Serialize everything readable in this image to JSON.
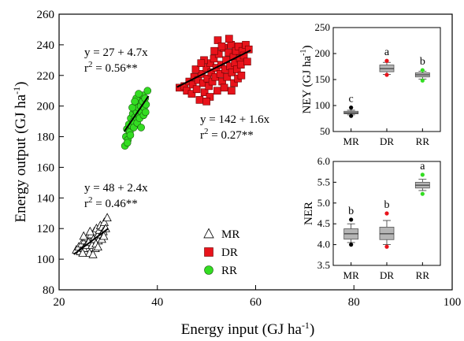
{
  "chart_data": [
    {
      "type": "scatter",
      "title": "",
      "xlabel": "Energy input (GJ ha",
      "xlabel_sup": "-1",
      "xlabel_end": ")",
      "ylabel": "Energy output (GJ ha",
      "ylabel_sup": "-1",
      "ylabel_end": ")",
      "xlim": [
        20,
        100
      ],
      "ylim": [
        80,
        260
      ],
      "xticks": [
        "20",
        "40",
        "60",
        "80",
        "100"
      ],
      "yticks": [
        "80",
        "100",
        "120",
        "140",
        "160",
        "180",
        "200",
        "220",
        "240",
        "260"
      ],
      "grid": false,
      "legend": "lower-center",
      "series": [
        {
          "name": "MR",
          "marker": "triangle",
          "color": "#ffffff",
          "stroke": "#000000",
          "points": [
            [
              23.5,
              106
            ],
            [
              24,
              108
            ],
            [
              24.3,
              105
            ],
            [
              24.6,
              110
            ],
            [
              25,
              107
            ],
            [
              25.2,
              112
            ],
            [
              25.5,
              109
            ],
            [
              25.8,
              114
            ],
            [
              26,
              111
            ],
            [
              26.2,
              104
            ],
            [
              26.5,
              116
            ],
            [
              26.7,
              109
            ],
            [
              27,
              113
            ],
            [
              27.2,
              118
            ],
            [
              27.4,
              107
            ],
            [
              27.6,
              120
            ],
            [
              27.8,
              115
            ],
            [
              28,
              112
            ],
            [
              28.2,
              119
            ],
            [
              28.4,
              122
            ],
            [
              28.6,
              116
            ],
            [
              28.8,
              121
            ],
            [
              29,
              118
            ],
            [
              29.2,
              124
            ],
            [
              29.5,
              120
            ],
            [
              29.8,
              127
            ],
            [
              25,
              115
            ],
            [
              26.3,
              118
            ],
            [
              27.5,
              110
            ],
            [
              28.7,
              113
            ],
            [
              24.8,
              104
            ],
            [
              26.9,
              103
            ],
            [
              27.9,
              108
            ],
            [
              29.1,
              115
            ]
          ],
          "fit": {
            "intercept": 48,
            "slope": 2.4,
            "xrange": [
              23,
              30
            ]
          },
          "eq": "y = 48 + 2.4x",
          "r2_prefix": "r",
          "r2_sup": "2",
          "r2_value": " = 0.46**"
        },
        {
          "name": "DR",
          "marker": "square",
          "color": "#e8131b",
          "stroke": "#6a0000",
          "points": [
            [
              44.5,
              212
            ],
            [
              45.5,
              213
            ],
            [
              46,
              210
            ],
            [
              46.5,
              216
            ],
            [
              47,
              208
            ],
            [
              47.2,
              214
            ],
            [
              47.5,
              219
            ],
            [
              48,
              211
            ],
            [
              48.3,
              217
            ],
            [
              48.6,
              204
            ],
            [
              49,
              221
            ],
            [
              49.3,
              215
            ],
            [
              49.6,
              209
            ],
            [
              50,
              225
            ],
            [
              50.2,
              218
            ],
            [
              50.5,
              213
            ],
            [
              50.8,
              228
            ],
            [
              51,
              222
            ],
            [
              51.2,
              216
            ],
            [
              51.5,
              231
            ],
            [
              51.8,
              219
            ],
            [
              52,
              225
            ],
            [
              52.2,
              210
            ],
            [
              52.5,
              234
            ],
            [
              52.8,
              221
            ],
            [
              53,
              227
            ],
            [
              53.2,
              216
            ],
            [
              53.5,
              238
            ],
            [
              53.8,
              224
            ],
            [
              54,
              230
            ],
            [
              54.2,
              219
            ],
            [
              54.5,
              235
            ],
            [
              54.8,
              226
            ],
            [
              55,
              240
            ],
            [
              55.2,
              222
            ],
            [
              55.5,
              232
            ],
            [
              55.8,
              228
            ],
            [
              56,
              236
            ],
            [
              56.2,
              224
            ],
            [
              56.5,
              239
            ],
            [
              56.8,
              231
            ],
            [
              57,
              227
            ],
            [
              57.3,
              236
            ],
            [
              57.6,
              233
            ],
            [
              58,
              240
            ],
            [
              58.3,
              229
            ],
            [
              58.6,
              237
            ],
            [
              49.5,
              230
            ],
            [
              50.7,
              206
            ],
            [
              52.3,
              243
            ],
            [
              53.6,
              212
            ],
            [
              54.6,
              244
            ],
            [
              55.6,
              215
            ],
            [
              56.4,
              218
            ],
            [
              51.6,
              236
            ],
            [
              47.8,
              224
            ],
            [
              48.9,
              228
            ],
            [
              53.1,
              239
            ],
            [
              57.1,
              220
            ],
            [
              50,
              203
            ],
            [
              55.1,
              210
            ]
          ],
          "fit": {
            "intercept": 142,
            "slope": 1.6,
            "xrange": [
              44,
              59
            ]
          },
          "eq": "y = 142 + 1.6x",
          "r2_prefix": "r",
          "r2_sup": "2",
          "r2_value": " = 0.27**"
        },
        {
          "name": "RR",
          "marker": "circle",
          "color": "#33dd22",
          "stroke": "#1a5a10",
          "points": [
            [
              33.4,
              174
            ],
            [
              33.6,
              180
            ],
            [
              33.8,
              185
            ],
            [
              34,
              178
            ],
            [
              34.2,
              188
            ],
            [
              34.4,
              183
            ],
            [
              34.6,
              192
            ],
            [
              34.8,
              187
            ],
            [
              35,
              195
            ],
            [
              35.1,
              190
            ],
            [
              35.3,
              198
            ],
            [
              35.5,
              193
            ],
            [
              35.6,
              201
            ],
            [
              35.8,
              196
            ],
            [
              36,
              204
            ],
            [
              36.1,
              199
            ],
            [
              36.3,
              193
            ],
            [
              36.5,
              206
            ],
            [
              36.6,
              200
            ],
            [
              36.8,
              196
            ],
            [
              37,
              203
            ],
            [
              37.1,
              207
            ],
            [
              37.3,
              199
            ],
            [
              37.5,
              205
            ],
            [
              37.7,
              201
            ],
            [
              38,
              210
            ],
            [
              35.2,
              186
            ],
            [
              35.9,
              189
            ],
            [
              36.4,
              192
            ],
            [
              34.9,
              199
            ],
            [
              35.7,
              205
            ],
            [
              36.7,
              186
            ],
            [
              37.2,
              194
            ],
            [
              34.5,
              181
            ],
            [
              35.4,
              203
            ],
            [
              36.2,
              208
            ],
            [
              37.6,
              196
            ],
            [
              33.9,
              176
            ]
          ],
          "fit": {
            "intercept": 27,
            "slope": 4.7,
            "xrange": [
              33.3,
              38.2
            ]
          },
          "eq": "y = 27 + 4.7x",
          "r2_prefix": "r",
          "r2_sup": "2",
          "r2_value": " = 0.56**"
        }
      ]
    },
    {
      "type": "box",
      "title": "",
      "ylabel": "NEY (GJ ha",
      "ylabel_sup": "-1",
      "ylabel_end": ")",
      "ylim": [
        50,
        250
      ],
      "yticks": [
        "50",
        "100",
        "150",
        "200",
        "250"
      ],
      "categories": [
        "MR",
        "DR",
        "RR"
      ],
      "boxes": [
        {
          "q1": 84,
          "median": 86,
          "q3": 89,
          "min": 82,
          "max": 91,
          "outliers": [
            96,
            80
          ],
          "outlier_color": "#000000",
          "letter": "c"
        },
        {
          "q1": 165,
          "median": 171,
          "q3": 178,
          "min": 160,
          "max": 183,
          "outliers": [
            186,
            159
          ],
          "outlier_color": "#e8131b",
          "letter": "a"
        },
        {
          "q1": 155,
          "median": 159,
          "q3": 163,
          "min": 151,
          "max": 166,
          "outliers": [
            168,
            148
          ],
          "outlier_color": "#33dd22",
          "letter": "b"
        }
      ]
    },
    {
      "type": "box",
      "title": "",
      "ylabel": "NER",
      "ylim": [
        3.5,
        6.0
      ],
      "yticks": [
        "3.5",
        "4.0",
        "4.5",
        "5.0",
        "5.5",
        "6.0"
      ],
      "categories": [
        "MR",
        "DR",
        "RR"
      ],
      "boxes": [
        {
          "q1": 4.13,
          "median": 4.26,
          "q3": 4.38,
          "min": 4.05,
          "max": 4.5,
          "outliers": [
            4.6,
            4.0
          ],
          "outlier_color": "#000000",
          "letter": "b"
        },
        {
          "q1": 4.12,
          "median": 4.26,
          "q3": 4.42,
          "min": 4.0,
          "max": 4.58,
          "outliers": [
            4.75,
            3.95
          ],
          "outlier_color": "#e8131b",
          "letter": "b"
        },
        {
          "q1": 5.36,
          "median": 5.43,
          "q3": 5.5,
          "min": 5.3,
          "max": 5.57,
          "outliers": [
            5.68,
            5.22
          ],
          "outlier_color": "#33dd22",
          "letter": "a"
        }
      ]
    }
  ]
}
